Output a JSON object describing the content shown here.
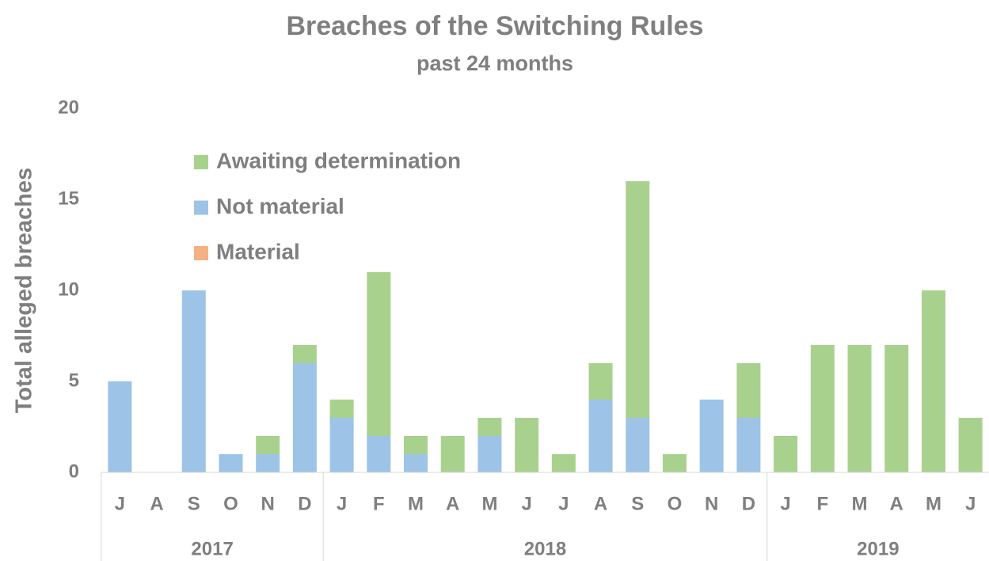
{
  "chart_data": {
    "type": "stacked_bar",
    "title": "Breaches of the Switching Rules",
    "subtitle": "past 24 months",
    "y_label": "Total alleged breaches",
    "categories": [
      "J",
      "A",
      "S",
      "O",
      "N",
      "D",
      "J",
      "F",
      "M",
      "A",
      "M",
      "J",
      "J",
      "A",
      "S",
      "O",
      "N",
      "D",
      "J",
      "F",
      "M",
      "A",
      "M",
      "J"
    ],
    "years": [
      "2017",
      "2017",
      "2017",
      "2017",
      "2017",
      "2017",
      "2018",
      "2018",
      "2018",
      "2018",
      "2018",
      "2018",
      "2018",
      "2018",
      "2018",
      "2018",
      "2018",
      "2018",
      "2019",
      "2019",
      "2019",
      "2019",
      "2019",
      "2019"
    ],
    "series": [
      {
        "name": "Material",
        "color": "#f4b183",
        "values": [
          0,
          0,
          0,
          0,
          0,
          0,
          0,
          0,
          0,
          0,
          0,
          0,
          0,
          0,
          0,
          0,
          0,
          0,
          0,
          0,
          0,
          0,
          0,
          0
        ]
      },
      {
        "name": "Not material",
        "color": "#9dc3e6",
        "values": [
          5,
          0,
          10,
          1,
          1,
          6,
          3,
          2,
          1,
          0,
          2,
          0,
          0,
          4,
          3,
          0,
          4,
          3,
          0,
          0,
          0,
          0,
          0,
          0
        ]
      },
      {
        "name": "Awaiting determination",
        "color": "#a9d18e",
        "values": [
          0,
          0,
          0,
          0,
          1,
          1,
          1,
          9,
          1,
          2,
          1,
          3,
          1,
          2,
          13,
          1,
          0,
          3,
          2,
          7,
          7,
          7,
          10,
          3
        ]
      }
    ],
    "ylim": [
      0,
      20
    ],
    "yticks": [
      0,
      5,
      10,
      15,
      20
    ],
    "grid": false,
    "legend": "upper left"
  }
}
